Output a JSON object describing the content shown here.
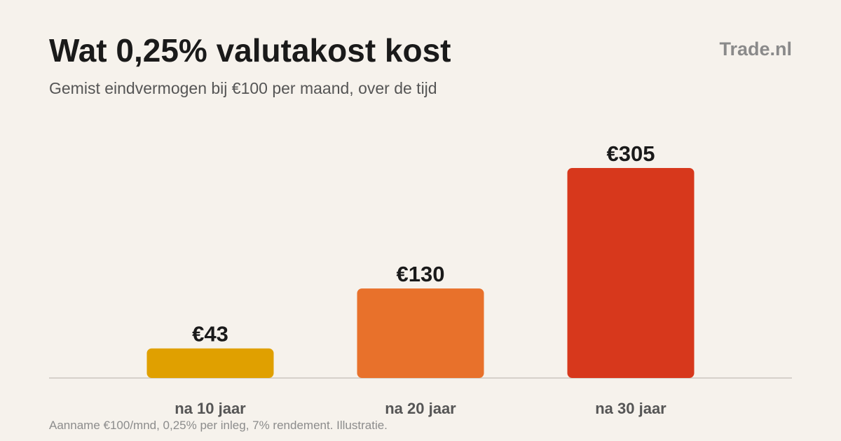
{
  "header": {
    "title": "Wat 0,25% valutakost kost",
    "subtitle": "Gemist eindvermogen bij €100 per maand, over de tijd",
    "brand": "Trade.nl"
  },
  "footnote": "Aanname €100/mnd, 0,25% per inleg, 7% rendement. Illustratie.",
  "chart_data": {
    "type": "bar",
    "categories": [
      "na 10 jaar",
      "na 20 jaar",
      "na 30 jaar"
    ],
    "values": [
      43,
      130,
      305
    ],
    "value_labels": [
      "€43",
      "€130",
      "€305"
    ],
    "colors": [
      "#e0a000",
      "#e8712b",
      "#d7381c"
    ],
    "ylim": [
      0,
      305
    ],
    "grid": false,
    "legend": "none"
  }
}
